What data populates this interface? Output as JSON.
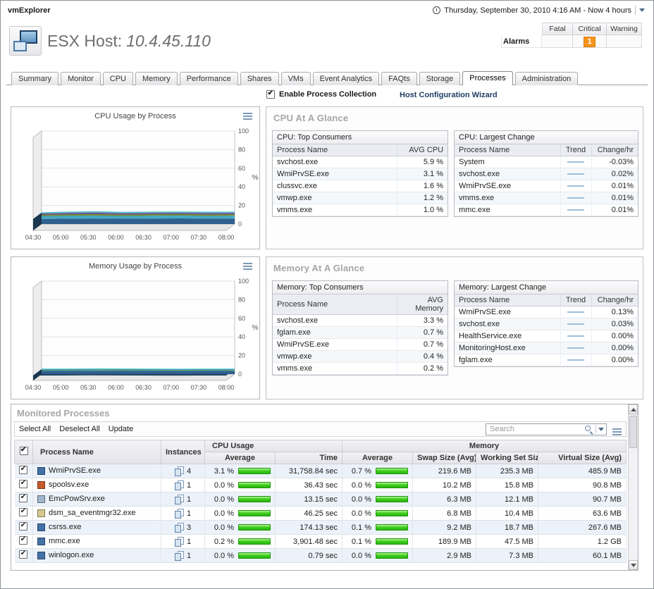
{
  "app": {
    "name": "vmExplorer",
    "time_range": "Thursday, September 30, 2010 4:16 AM - Now 4 hours"
  },
  "header": {
    "title": "ESX Host:",
    "host": "10.4.45.110",
    "alarms": {
      "label": "Alarms",
      "columns": [
        "Fatal",
        "Critical",
        "Warning"
      ],
      "counts": {
        "fatal": "",
        "critical": "1",
        "warning": ""
      }
    }
  },
  "colors": {
    "critical_orange": "#f7941d",
    "bar_green": "#2fbf12",
    "chart_accent": "#3fc0d8"
  },
  "tabs": {
    "items": [
      "Summary",
      "Monitor",
      "CPU",
      "Memory",
      "Performance",
      "Shares",
      "VMs",
      "Event Analytics",
      "FAQts",
      "Storage",
      "Processes",
      "Administration"
    ],
    "active": "Processes"
  },
  "controls": {
    "collection_checkbox_label": "Enable Process Collection",
    "wizard_link": "Host Configuration Wizard"
  },
  "chart_data": [
    {
      "type": "area",
      "title": "CPU Usage by Process",
      "x": [
        "04:30",
        "05:00",
        "05:30",
        "06:00",
        "06:30",
        "07:00",
        "07:30",
        "08:00"
      ],
      "ylabel": "%",
      "ylim": [
        0,
        100
      ],
      "yticks": [
        0,
        20,
        40,
        60,
        80,
        100
      ],
      "grid": true,
      "legend": "none",
      "colors": [
        "#2f5f8f",
        "#44aac4",
        "#7c8f3a",
        "#6f4f97",
        "#9aa7b5"
      ],
      "series": [
        {
          "name": "svchost.exe",
          "values": [
            5.5,
            5.8,
            6.0,
            5.7,
            5.9,
            6.1,
            5.8,
            5.9
          ]
        },
        {
          "name": "WmiPrvSE.exe",
          "values": [
            3.0,
            3.2,
            3.1,
            3.0,
            3.2,
            3.1,
            3.0,
            3.1
          ]
        },
        {
          "name": "clussvc.exe",
          "values": [
            1.5,
            1.6,
            1.7,
            1.6,
            1.5,
            1.6,
            1.7,
            1.6
          ]
        },
        {
          "name": "vmwp.exe",
          "values": [
            1.2,
            1.2,
            1.3,
            1.2,
            1.2,
            1.1,
            1.2,
            1.2
          ]
        },
        {
          "name": "vmms.exe",
          "values": [
            1.0,
            1.0,
            1.1,
            1.0,
            1.0,
            1.0,
            1.0,
            1.0
          ]
        }
      ]
    },
    {
      "type": "area",
      "title": "Memory Usage by Process",
      "x": [
        "04:30",
        "05:00",
        "05:30",
        "06:00",
        "06:30",
        "07:00",
        "07:30",
        "08:00"
      ],
      "ylabel": "%",
      "ylim": [
        0,
        100
      ],
      "yticks": [
        0,
        20,
        40,
        60,
        80,
        100
      ],
      "grid": true,
      "legend": "none",
      "colors": [
        "#2f5f8f",
        "#44aac4",
        "#7c8f3a",
        "#6f4f97",
        "#9aa7b5"
      ],
      "series": [
        {
          "name": "svchost.exe",
          "values": [
            3.3,
            3.3,
            3.4,
            3.3,
            3.3,
            3.2,
            3.3,
            3.3
          ]
        },
        {
          "name": "fglam.exe",
          "values": [
            0.7,
            0.7,
            0.8,
            0.7,
            0.7,
            0.7,
            0.7,
            0.7
          ]
        },
        {
          "name": "WmiPrvSE.exe",
          "values": [
            0.7,
            0.7,
            0.7,
            0.8,
            0.7,
            0.7,
            0.7,
            0.7
          ]
        },
        {
          "name": "vmwp.exe",
          "values": [
            0.4,
            0.4,
            0.4,
            0.4,
            0.4,
            0.4,
            0.4,
            0.4
          ]
        },
        {
          "name": "vmms.exe",
          "values": [
            0.2,
            0.2,
            0.2,
            0.2,
            0.2,
            0.2,
            0.2,
            0.2
          ]
        }
      ]
    }
  ],
  "cpu_glance": {
    "title": "CPU At A Glance",
    "top": {
      "title": "CPU: Top Consumers",
      "columns": [
        "Process Name",
        "AVG CPU"
      ],
      "rows": [
        [
          "svchost.exe",
          "5.9 %"
        ],
        [
          "WmiPrvSE.exe",
          "3.1 %"
        ],
        [
          "clussvc.exe",
          "1.6 %"
        ],
        [
          "vmwp.exe",
          "1.2 %"
        ],
        [
          "vmms.exe",
          "1.0 %"
        ]
      ]
    },
    "change": {
      "title": "CPU: Largest Change",
      "columns": [
        "Process Name",
        "Trend",
        "Change/hr"
      ],
      "rows": [
        [
          "System",
          "-0.03%"
        ],
        [
          "svchost.exe",
          "0.02%"
        ],
        [
          "WmiPrvSE.exe",
          "0.01%"
        ],
        [
          "vmms.exe",
          "0.01%"
        ],
        [
          "mmc.exe",
          "0.01%"
        ]
      ]
    }
  },
  "mem_glance": {
    "title": "Memory At A Glance",
    "top": {
      "title": "Memory: Top Consumers",
      "columns": [
        "Process Name",
        "AVG Memory"
      ],
      "rows": [
        [
          "svchost.exe",
          "3.3 %"
        ],
        [
          "fglam.exe",
          "0.7 %"
        ],
        [
          "WmiPrvSE.exe",
          "0.7 %"
        ],
        [
          "vmwp.exe",
          "0.4 %"
        ],
        [
          "vmms.exe",
          "0.2 %"
        ]
      ]
    },
    "change": {
      "title": "Memory: Largest Change",
      "columns": [
        "Process Name",
        "Trend",
        "Change/hr"
      ],
      "rows": [
        [
          "WmiPrvSE.exe",
          "0.13%"
        ],
        [
          "svchost.exe",
          "0.03%"
        ],
        [
          "HealthService.exe",
          "0.00%"
        ],
        [
          "MonitoringHost.exe",
          "0.00%"
        ],
        [
          "fglam.exe",
          "0.00%"
        ]
      ]
    }
  },
  "monitored": {
    "title": "Monitored Processes",
    "toolbar": [
      "Select All",
      "Deselect All",
      "Update"
    ],
    "search_placeholder": "Search",
    "columns": {
      "name": "Process Name",
      "instances": "Instances",
      "cpu_group": "CPU Usage",
      "mem_group": "Memory",
      "cpu_sub": [
        "Average",
        "Time"
      ],
      "mem_sub": [
        "Average",
        "Swap Size (Avg)",
        "Working Set Size",
        "Virtual Size (Avg)"
      ]
    },
    "rows": [
      {
        "checked": true,
        "name": "WmiPrvSE.exe",
        "icon_color": "#4472a8",
        "instances": "4",
        "cpu_avg": "3.1 %",
        "cpu_time": "31,758.84 sec",
        "mem_avg": "0.7 %",
        "swap": "219.6 MB",
        "working_set": "235.3 MB",
        "virtual": "485.9 MB"
      },
      {
        "checked": true,
        "name": "spoolsv.exe",
        "icon_color": "#c75b2a",
        "instances": "1",
        "cpu_avg": "0.0 %",
        "cpu_time": "36.43 sec",
        "mem_avg": "0.0 %",
        "swap": "10.2 MB",
        "working_set": "15.8 MB",
        "virtual": "90.8 MB"
      },
      {
        "checked": true,
        "name": "EmcPowSrv.exe",
        "icon_color": "#9fb6cc",
        "instances": "1",
        "cpu_avg": "0.0 %",
        "cpu_time": "13.15 sec",
        "mem_avg": "0.0 %",
        "swap": "6.3 MB",
        "working_set": "12.1 MB",
        "virtual": "90.7 MB"
      },
      {
        "checked": true,
        "name": "dsm_sa_eventmgr32.exe",
        "icon_color": "#d6c98e",
        "instances": "1",
        "cpu_avg": "0.0 %",
        "cpu_time": "46.25 sec",
        "mem_avg": "0.0 %",
        "swap": "6.8 MB",
        "working_set": "10.4 MB",
        "virtual": "63.6 MB"
      },
      {
        "checked": true,
        "name": "csrss.exe",
        "icon_color": "#4472a8",
        "instances": "3",
        "cpu_avg": "0.0 %",
        "cpu_time": "174.13 sec",
        "mem_avg": "0.1 %",
        "swap": "9.2 MB",
        "working_set": "18.7 MB",
        "virtual": "267.6 MB"
      },
      {
        "checked": true,
        "name": "mmc.exe",
        "icon_color": "#4472a8",
        "instances": "1",
        "cpu_avg": "0.2 %",
        "cpu_time": "3,901.48 sec",
        "mem_avg": "0.1 %",
        "swap": "189.9 MB",
        "working_set": "47.5 MB",
        "virtual": "1.2 GB"
      },
      {
        "checked": true,
        "name": "winlogon.exe",
        "icon_color": "#4472a8",
        "instances": "1",
        "cpu_avg": "0.0 %",
        "cpu_time": "0.79 sec",
        "mem_avg": "0.0 %",
        "swap": "2.9 MB",
        "working_set": "7.3 MB",
        "virtual": "60.1 MB"
      }
    ]
  }
}
